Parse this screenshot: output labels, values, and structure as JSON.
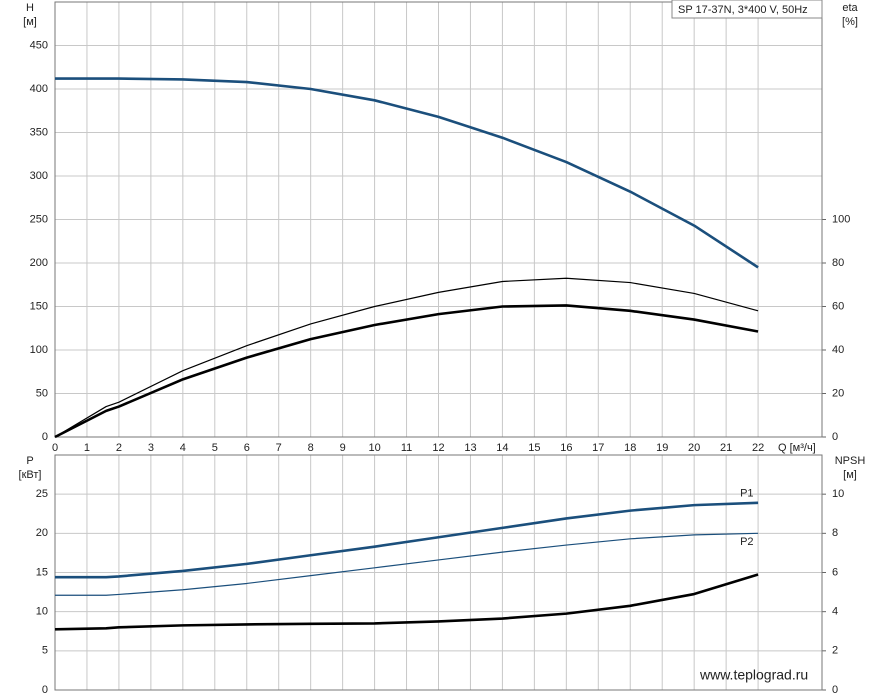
{
  "chart_data": [
    {
      "type": "line",
      "title": "SP 17-37N, 3*400 V, 50Hz",
      "ylabel": "H",
      "yunit": "[м]",
      "y2label": "eta",
      "y2unit": "[%]",
      "xlabel": "Q [м³/ч]",
      "x": [
        0,
        1.6,
        2,
        4,
        6,
        8,
        10,
        12,
        14,
        16,
        18,
        20,
        22
      ],
      "xlim": [
        0,
        24
      ],
      "xticks": [
        0,
        1,
        2,
        3,
        4,
        5,
        6,
        7,
        8,
        9,
        10,
        11,
        12,
        13,
        14,
        15,
        16,
        17,
        18,
        19,
        20,
        21,
        22
      ],
      "ylim": [
        0,
        500
      ],
      "yticks": [
        0,
        50,
        100,
        150,
        200,
        250,
        300,
        350,
        400,
        450
      ],
      "y2lim": [
        0,
        200
      ],
      "y2ticks": [
        0,
        20,
        40,
        60,
        80,
        100
      ],
      "grid": true,
      "series": [
        {
          "color": "#1b4f7c",
          "style": "thick",
          "values": [
            412,
            412,
            412,
            411,
            408,
            400,
            387,
            368,
            344,
            316,
            282,
            243,
            195
          ]
        },
        {
          "color": "#000000",
          "style": "thin",
          "axis": "y2",
          "values": [
            0,
            14,
            16,
            30.5,
            42,
            52,
            60,
            66.5,
            71.5,
            73,
            71,
            66,
            58
          ]
        },
        {
          "color": "#000000",
          "style": "thick",
          "axis": "y2",
          "values": [
            0,
            12,
            14,
            26.5,
            36.5,
            45,
            51.5,
            56.5,
            60,
            60.5,
            58,
            54,
            48.5
          ]
        }
      ]
    },
    {
      "type": "line",
      "ylabel": "P",
      "yunit": "[кВт]",
      "y2label": "NPSH",
      "y2unit": "[м]",
      "x": [
        0,
        1.6,
        2,
        4,
        6,
        8,
        10,
        12,
        14,
        16,
        18,
        20,
        22
      ],
      "xlim": [
        0,
        24
      ],
      "xticks": [
        0,
        1,
        2,
        3,
        4,
        5,
        6,
        7,
        8,
        9,
        10,
        11,
        12,
        13,
        14,
        15,
        16,
        17,
        18,
        19,
        20,
        21,
        22
      ],
      "ylim": [
        0,
        30
      ],
      "yticks": [
        0,
        5,
        10,
        15,
        20,
        25
      ],
      "y2lim": [
        0,
        12
      ],
      "y2ticks": [
        0,
        2,
        4,
        6,
        8,
        10
      ],
      "grid": true,
      "series": [
        {
          "name": "P1",
          "color": "#1b4f7c",
          "style": "thick",
          "values": [
            14.4,
            14.4,
            14.5,
            15.2,
            16.1,
            17.2,
            18.3,
            19.5,
            20.7,
            21.9,
            22.9,
            23.6,
            23.9
          ]
        },
        {
          "name": "P2",
          "color": "#1b4f7c",
          "style": "thin",
          "values": [
            12.1,
            12.1,
            12.2,
            12.8,
            13.6,
            14.6,
            15.6,
            16.6,
            17.6,
            18.5,
            19.3,
            19.8,
            20
          ]
        },
        {
          "color": "#000000",
          "style": "thick",
          "axis": "y2",
          "values": [
            3.1,
            3.15,
            3.2,
            3.3,
            3.35,
            3.38,
            3.4,
            3.5,
            3.65,
            3.9,
            4.3,
            4.9,
            5.9
          ]
        }
      ]
    }
  ],
  "source": "www.teplograd.ru"
}
